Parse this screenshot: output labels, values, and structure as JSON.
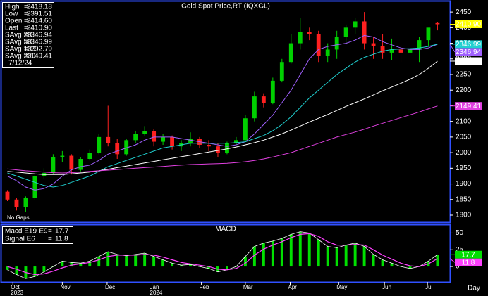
{
  "chart_data": [
    {
      "type": "candlestick",
      "title": "Gold Spot Price,RT (IQXGL)",
      "note": "No Gaps",
      "date": "7/12/24",
      "info_separator": "=",
      "up_color": "#00d000",
      "down_color": "#ff2020",
      "last_price_color": "#ffff00",
      "x": [
        0,
        1,
        2,
        3,
        4,
        5,
        6,
        7,
        8,
        9,
        10,
        11,
        12,
        13,
        14,
        15,
        16,
        17,
        18,
        19,
        20,
        21,
        22,
        23,
        24,
        25,
        26,
        27,
        28,
        29,
        30,
        31,
        32,
        33,
        34,
        35,
        36,
        37,
        38,
        39,
        40,
        41,
        42,
        43,
        44,
        45,
        46,
        47
      ],
      "xlim": [
        -0.5,
        48.2
      ],
      "ylim": [
        1782,
        2475
      ],
      "yticks": [
        1800,
        1850,
        1900,
        1950,
        2000,
        2050,
        2100,
        2150,
        2200,
        2250,
        2300,
        2350,
        2400,
        2450
      ],
      "series": [
        {
          "name": "High",
          "color": "#ffff00",
          "values": [
            1880,
            1855,
            1860,
            1930,
            1950,
            1995,
            2005,
            1995,
            1985,
            2010,
            2060,
            2150,
            2045,
            2045,
            2070,
            2085,
            2075,
            2060,
            2055,
            2040,
            2065,
            2050,
            2040,
            2030,
            2035,
            2050,
            2120,
            2195,
            2190,
            2240,
            2300,
            2380,
            2430,
            2400,
            2390,
            2350,
            2390,
            2410,
            2430,
            2450,
            2370,
            2380,
            2365,
            2345,
            2340,
            2370,
            2395,
            2418.18
          ]
        },
        {
          "name": "Low",
          "color": "#ffff00",
          "values": [
            1845,
            1815,
            1810,
            1850,
            1915,
            1930,
            1970,
            1930,
            1940,
            1975,
            1995,
            2020,
            1980,
            1990,
            2030,
            2055,
            2020,
            2025,
            2010,
            2005,
            2020,
            2015,
            2005,
            1985,
            1995,
            2025,
            2035,
            2100,
            2145,
            2155,
            2225,
            2285,
            2330,
            2360,
            2290,
            2290,
            2300,
            2350,
            2380,
            2330,
            2300,
            2300,
            2295,
            2290,
            2280,
            2290,
            2340,
            2391.51
          ]
        },
        {
          "name": "Open",
          "color": "#00e000",
          "values": [
            1875,
            1850,
            1825,
            1855,
            1925,
            1935,
            1985,
            1990,
            1945,
            1980,
            2000,
            2050,
            2030,
            1995,
            2040,
            2060,
            2070,
            2035,
            2050,
            2020,
            2030,
            2045,
            2025,
            2020,
            2000,
            2030,
            2040,
            2110,
            2180,
            2160,
            2230,
            2290,
            2350,
            2385,
            2380,
            2310,
            2330,
            2370,
            2400,
            2420,
            2350,
            2340,
            2320,
            2330,
            2320,
            2330,
            2360,
            2414.6
          ],
          "value_labels": [
            null,
            null,
            null,
            null,
            null,
            null,
            null,
            null,
            null,
            null,
            null,
            null,
            null,
            null,
            null,
            null,
            null,
            null,
            null,
            null,
            null,
            null,
            null,
            null,
            null,
            null,
            null,
            null,
            null,
            null,
            null,
            null,
            null,
            null,
            null,
            null,
            null,
            null,
            null,
            null,
            null,
            null,
            null,
            null,
            null,
            null,
            null,
            "2414.60"
          ]
        },
        {
          "name": "Last",
          "color": "#ff3030",
          "values": [
            1850,
            1825,
            1855,
            1925,
            1935,
            1985,
            1990,
            1945,
            1980,
            2000,
            2050,
            2030,
            1995,
            2040,
            2060,
            2070,
            2035,
            2050,
            2020,
            2030,
            2045,
            2025,
            2020,
            2000,
            2030,
            2040,
            2110,
            2180,
            2160,
            2230,
            2290,
            2350,
            2385,
            2380,
            2310,
            2330,
            2370,
            2400,
            2420,
            2350,
            2340,
            2320,
            2330,
            2320,
            2330,
            2360,
            2400,
            2410.9
          ],
          "value_labels": [
            null,
            null,
            null,
            null,
            null,
            null,
            null,
            null,
            null,
            null,
            null,
            null,
            null,
            null,
            null,
            null,
            null,
            null,
            null,
            null,
            null,
            null,
            null,
            null,
            null,
            null,
            null,
            null,
            null,
            null,
            null,
            null,
            null,
            null,
            null,
            null,
            null,
            null,
            null,
            null,
            null,
            null,
            null,
            null,
            null,
            null,
            null,
            "2410.90"
          ]
        }
      ],
      "lines": [
        {
          "name": "SAvg 20",
          "color": "#a060ff",
          "values": [
            1925,
            1910,
            1890,
            1880,
            1885,
            1900,
            1925,
            1945,
            1955,
            1960,
            1975,
            1995,
            2005,
            2015,
            2025,
            2040,
            2050,
            2050,
            2050,
            2045,
            2040,
            2035,
            2030,
            2025,
            2020,
            2025,
            2035,
            2060,
            2090,
            2120,
            2160,
            2200,
            2250,
            2300,
            2330,
            2340,
            2345,
            2350,
            2360,
            2375,
            2370,
            2355,
            2345,
            2335,
            2330,
            2330,
            2335,
            2346.94
          ]
        },
        {
          "name": "SAvg 50",
          "color": "#20d0d0",
          "values": [
            1935,
            1925,
            1915,
            1905,
            1895,
            1890,
            1895,
            1905,
            1915,
            1925,
            1940,
            1955,
            1965,
            1975,
            1985,
            1995,
            2005,
            2015,
            2020,
            2025,
            2030,
            2030,
            2030,
            2030,
            2030,
            2032,
            2035,
            2045,
            2055,
            2070,
            2090,
            2115,
            2145,
            2175,
            2200,
            2225,
            2250,
            2270,
            2290,
            2305,
            2315,
            2325,
            2330,
            2332,
            2333,
            2335,
            2340,
            2346.99
          ]
        },
        {
          "name": "SAvg 100",
          "color": "#ffffff",
          "values": [
            1940,
            1938,
            1935,
            1932,
            1930,
            1930,
            1930,
            1932,
            1935,
            1938,
            1942,
            1947,
            1952,
            1957,
            1962,
            1967,
            1972,
            1977,
            1982,
            1987,
            1992,
            1997,
            2002,
            2007,
            2012,
            2018,
            2025,
            2032,
            2040,
            2050,
            2060,
            2072,
            2085,
            2098,
            2110,
            2122,
            2135,
            2148,
            2160,
            2172,
            2185,
            2198,
            2210,
            2222,
            2235,
            2250,
            2270,
            2292.79
          ]
        },
        {
          "name": "SAvg 200",
          "color": "#e040e0",
          "values": [
            1948,
            1945,
            1942,
            1940,
            1938,
            1936,
            1935,
            1936,
            1938,
            1940,
            1942,
            1944,
            1946,
            1948,
            1950,
            1952,
            1954,
            1956,
            1958,
            1960,
            1962,
            1963,
            1964,
            1965,
            1966,
            1968,
            1971,
            1975,
            1980,
            1986,
            1993,
            2000,
            2010,
            2020,
            2030,
            2040,
            2050,
            2058,
            2066,
            2075,
            2085,
            2094,
            2103,
            2112,
            2121,
            2130,
            2140,
            2149.41
          ]
        }
      ]
    },
    {
      "type": "macd",
      "title": "MACD",
      "x_label": "Day",
      "x": [
        0,
        1,
        2,
        3,
        4,
        5,
        6,
        7,
        8,
        9,
        10,
        11,
        12,
        13,
        14,
        15,
        16,
        17,
        18,
        19,
        20,
        21,
        22,
        23,
        24,
        25,
        26,
        27,
        28,
        29,
        30,
        31,
        32,
        33,
        34,
        35,
        36,
        37,
        38,
        39,
        40,
        41,
        42,
        43,
        44,
        45,
        46,
        47
      ],
      "xlim": [
        -0.5,
        48.2
      ],
      "ylim": [
        -22,
        61
      ],
      "yticks": [
        0,
        25,
        50
      ],
      "xticks": [
        {
          "value": 0.6,
          "label": "Oct"
        },
        {
          "value": 6,
          "label": "Nov"
        },
        {
          "value": 10.9,
          "label": "Dec"
        },
        {
          "value": 15.8,
          "label": "Jan"
        },
        {
          "value": 21.2,
          "label": "Feb"
        },
        {
          "value": 26,
          "label": "Mar"
        },
        {
          "value": 30.9,
          "label": "Apr"
        },
        {
          "value": 36.2,
          "label": "May"
        },
        {
          "value": 41.2,
          "label": "Jun"
        },
        {
          "value": 45.9,
          "label": "Jul"
        }
      ],
      "year_ticks": [
        {
          "value": 0.6,
          "label": "2023"
        },
        {
          "value": 15.8,
          "label": "2024"
        }
      ],
      "series": [
        {
          "name": "Macd E19-E9",
          "color": "#00e000",
          "values": [
            -5,
            -12,
            -18,
            -15,
            -8,
            0,
            8,
            6,
            5,
            8,
            15,
            22,
            18,
            16,
            18,
            20,
            15,
            10,
            5,
            2,
            3,
            0,
            -3,
            -8,
            -5,
            0,
            15,
            30,
            35,
            38,
            42,
            48,
            52,
            50,
            40,
            30,
            28,
            32,
            35,
            30,
            18,
            10,
            5,
            0,
            -3,
            0,
            8,
            17.7
          ]
        },
        {
          "name": "Signal E6",
          "color": "#ff40ff",
          "values": [
            0,
            -4,
            -9,
            -12,
            -11,
            -7,
            -2,
            2,
            4,
            6,
            10,
            15,
            17,
            17,
            17,
            18,
            17,
            14,
            10,
            6,
            4,
            2,
            0,
            -4,
            -5,
            -3,
            5,
            17,
            26,
            32,
            37,
            43,
            48,
            49,
            45,
            37,
            32,
            32,
            33,
            32,
            25,
            17,
            11,
            5,
            1,
            0,
            4,
            11.8
          ]
        }
      ]
    }
  ]
}
